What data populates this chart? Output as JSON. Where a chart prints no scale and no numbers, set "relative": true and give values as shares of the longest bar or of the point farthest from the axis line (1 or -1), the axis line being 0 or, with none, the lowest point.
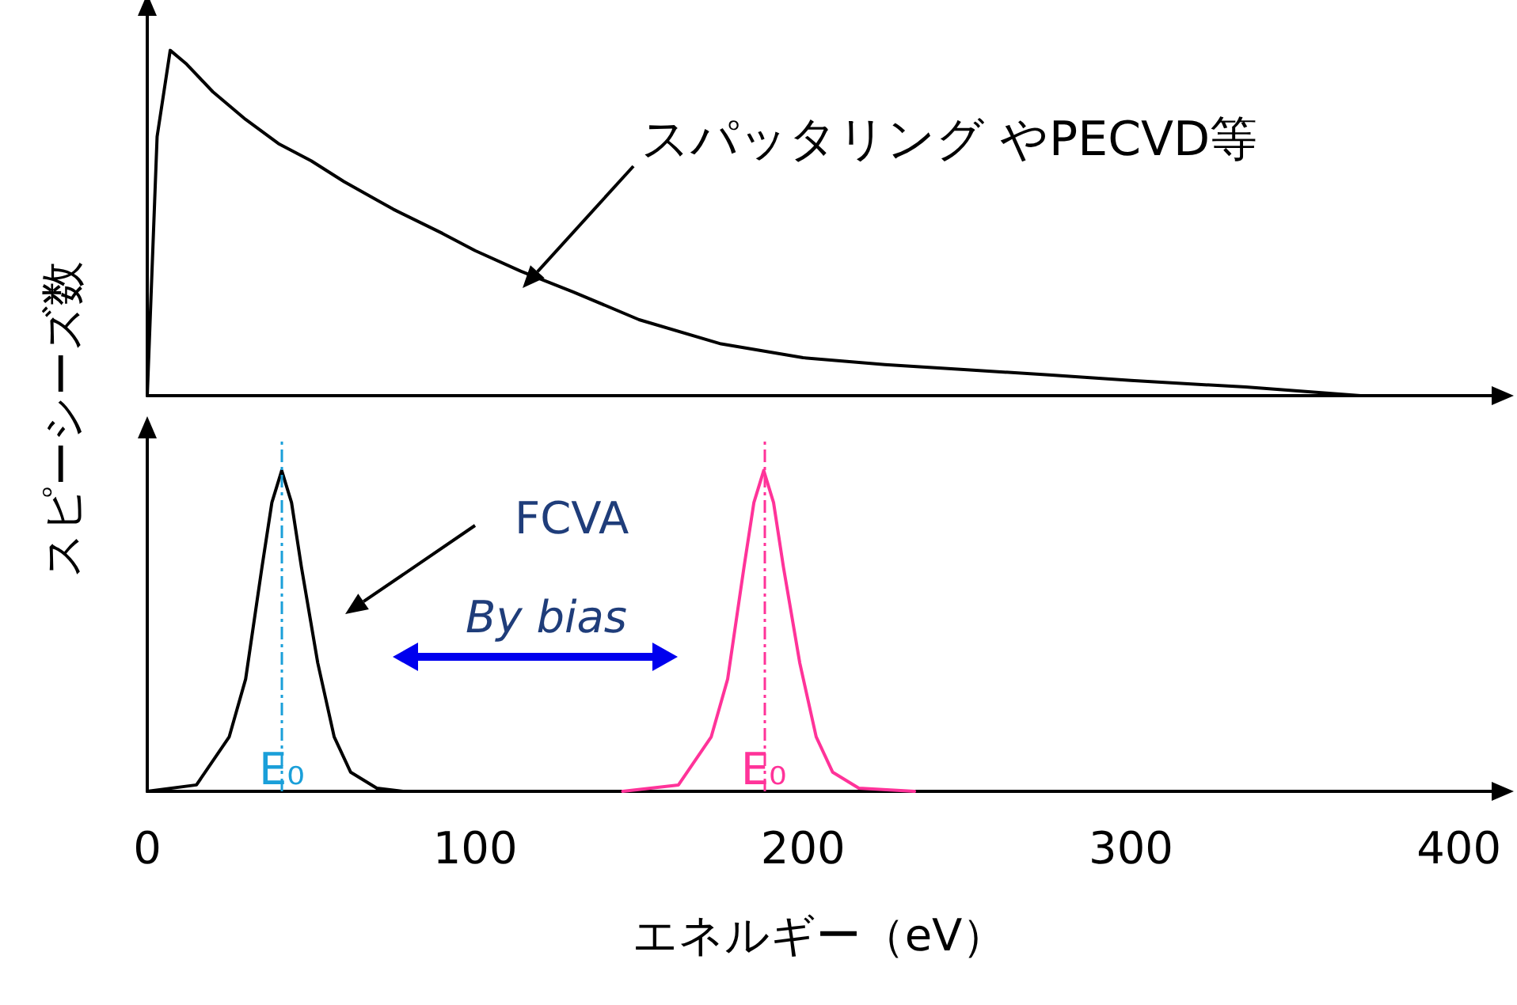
{
  "chart_data": [
    {
      "type": "line",
      "ylabel": "スピーシーズ数",
      "relative": true,
      "xlim": [
        0,
        410
      ],
      "tick_labels": false,
      "grid": false,
      "marker": "none",
      "line_style": "solid",
      "annotations": [
        "スパッタリング やPECVD等"
      ],
      "series": [
        {
          "color": "#000000",
          "x": [
            0,
            3,
            7,
            12,
            20,
            30,
            40,
            50,
            60,
            75,
            90,
            100,
            114,
            130,
            150,
            175,
            200,
            225,
            250,
            275,
            300,
            335,
            370
          ],
          "values": [
            0,
            0.75,
            1,
            0.96,
            0.88,
            0.8,
            0.73,
            0.68,
            0.62,
            0.54,
            0.47,
            0.42,
            0.36,
            0.3,
            0.22,
            0.15,
            0.11,
            0.09,
            0.075,
            0.06,
            0.044,
            0.025,
            0
          ]
        }
      ]
    },
    {
      "type": "line",
      "xlabel": "エネルギー（eV）",
      "relative": true,
      "xlim": [
        0,
        410
      ],
      "xticks": [
        0,
        100,
        200,
        300,
        400
      ],
      "tick_labels": "x",
      "grid": false,
      "marker": "none",
      "line_style": "solid",
      "annotations": [
        "FCVA",
        "By bias"
      ],
      "ref_lines": [
        {
          "axis": "x",
          "value": 41,
          "label": "E₀",
          "color": "#1a9fd9",
          "line_style": "dashed"
        },
        {
          "axis": "x",
          "value": 188,
          "label": "E₀",
          "color": "#ff3399",
          "line_style": "dashed"
        }
      ],
      "series": [
        {
          "color": "#000000",
          "x": [
            0,
            15,
            25,
            30,
            35,
            38,
            41,
            44,
            47,
            52,
            57,
            62,
            70,
            78
          ],
          "values": [
            0,
            0.02,
            0.17,
            0.35,
            0.7,
            0.9,
            1,
            0.9,
            0.7,
            0.4,
            0.17,
            0.06,
            0.01,
            0
          ]
        },
        {
          "color": "#ff3399",
          "x": [
            145,
            162,
            172,
            177,
            182,
            185,
            188,
            191,
            194,
            199,
            204,
            209,
            217,
            234
          ],
          "values": [
            0,
            0.02,
            0.17,
            0.35,
            0.7,
            0.9,
            1,
            0.9,
            0.7,
            0.4,
            0.17,
            0.06,
            0.01,
            0
          ]
        }
      ]
    }
  ]
}
